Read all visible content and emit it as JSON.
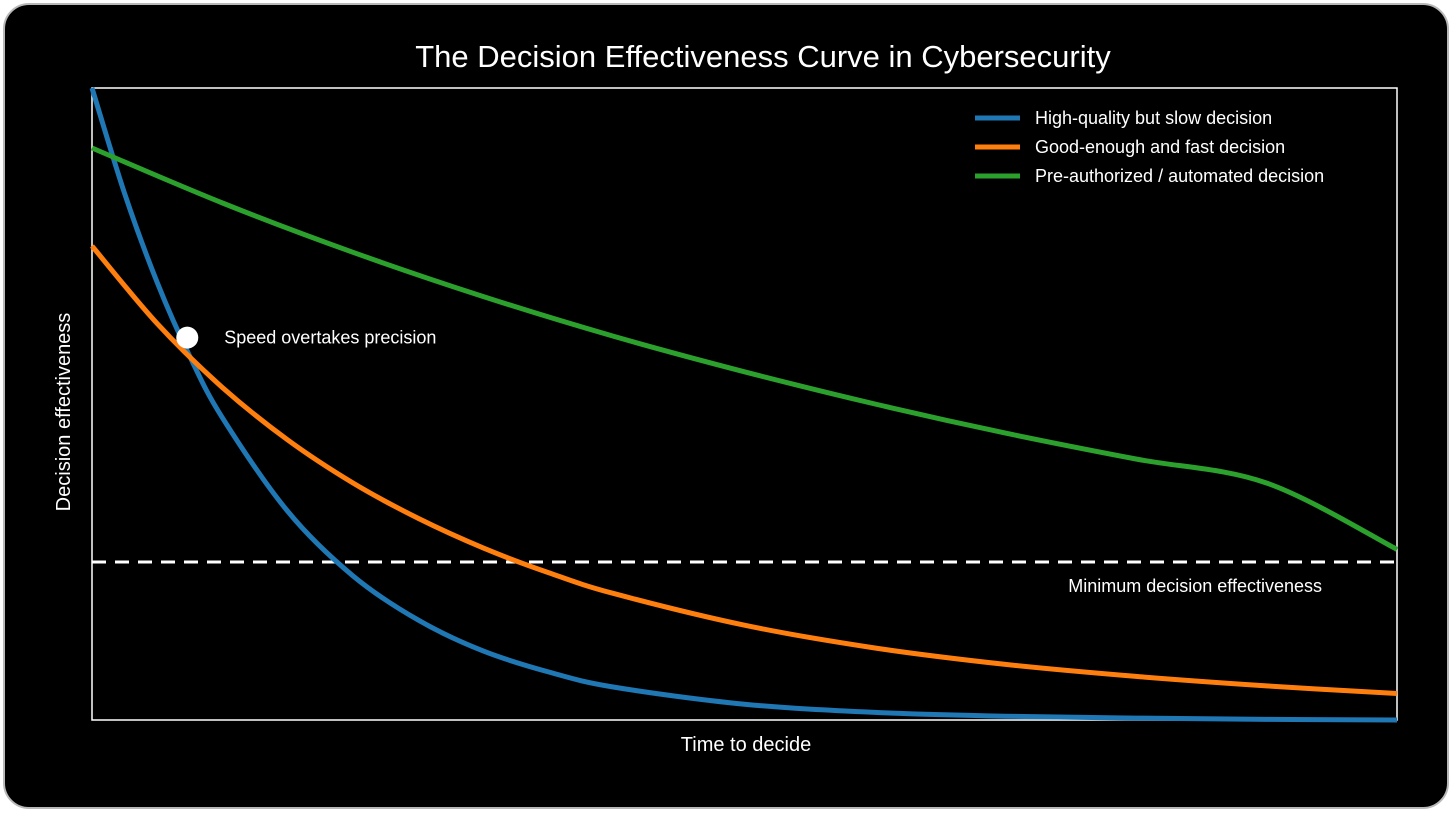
{
  "chart_data": {
    "type": "line",
    "title": "The Decision Effectiveness Curve in Cybersecurity",
    "xlabel": "Time to decide",
    "ylabel": "Decision effectiveness",
    "xlim": [
      0,
      10
    ],
    "ylim": [
      0,
      1
    ],
    "x_tick_labels": [],
    "y_tick_labels": [],
    "grid": false,
    "legend_position": "top-right",
    "series": [
      {
        "name": "High-quality but slow decision",
        "color": "#1f77b4",
        "x": [
          0,
          0.25,
          0.5,
          0.75,
          1,
          1.5,
          2,
          2.5,
          3,
          3.5,
          4,
          5,
          6,
          7,
          8,
          9,
          10
        ],
        "y": [
          1.0,
          0.833,
          0.692,
          0.575,
          0.478,
          0.33,
          0.228,
          0.158,
          0.109,
          0.076,
          0.052,
          0.025,
          0.012,
          0.006,
          0.003,
          0.001,
          0.0
        ]
      },
      {
        "name": "Good-enough and fast decision",
        "color": "#ff7f0e",
        "x": [
          0,
          0.5,
          1,
          1.5,
          2,
          2.5,
          3,
          3.5,
          4,
          5,
          6,
          7,
          8,
          9,
          10
        ],
        "y": [
          0.75,
          0.627,
          0.526,
          0.443,
          0.375,
          0.319,
          0.272,
          0.233,
          0.2,
          0.15,
          0.114,
          0.088,
          0.069,
          0.054,
          0.042
        ]
      },
      {
        "name": "Pre-authorized / automated decision",
        "color": "#2ca02c",
        "x": [
          0,
          1,
          2,
          3,
          4,
          5,
          6,
          7,
          8,
          9,
          10
        ],
        "y": [
          0.905,
          0.818,
          0.74,
          0.67,
          0.607,
          0.551,
          0.5,
          0.454,
          0.413,
          0.375,
          0.27
        ]
      }
    ],
    "threshold": {
      "label": "Minimum decision effectiveness",
      "y": 0.25,
      "color": "#ffffff"
    },
    "annotation": {
      "text": "Speed overtakes precision",
      "x": 0.73,
      "y": 0.605
    }
  }
}
